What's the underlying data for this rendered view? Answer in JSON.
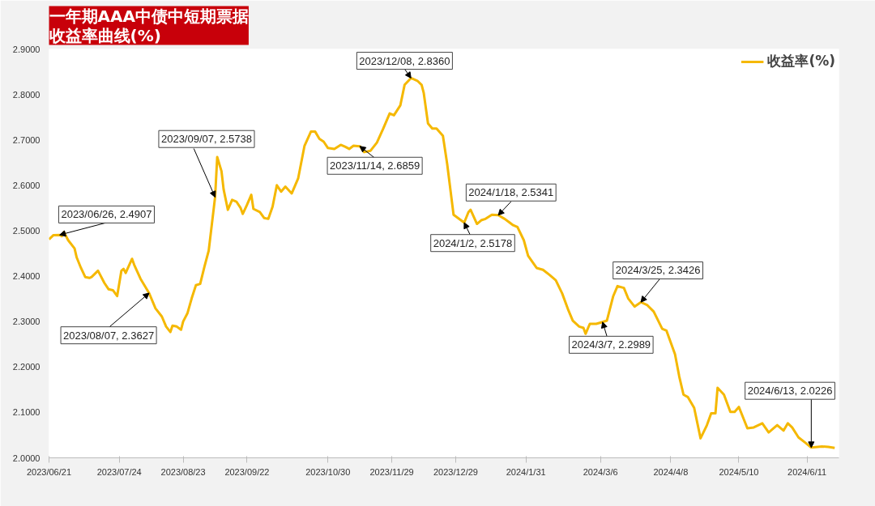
{
  "chart_data": {
    "type": "line",
    "title": "一年期AAA中债中短期票据收益率曲线(%)",
    "x": [
      "2023-06-21",
      "2023-06-23",
      "2023-06-26",
      "2023-06-27",
      "2023-06-28",
      "2023-06-30",
      "2023-07-03",
      "2023-07-04",
      "2023-07-06",
      "2023-07-08",
      "2023-07-10",
      "2023-07-11",
      "2023-07-14",
      "2023-07-15",
      "2023-07-17",
      "2023-07-19",
      "2023-07-21",
      "2023-07-23",
      "2023-07-25",
      "2023-07-26",
      "2023-07-27",
      "2023-07-30",
      "2023-07-31",
      "2023-08-03",
      "2023-08-07",
      "2023-08-10",
      "2023-08-13",
      "2023-08-15",
      "2023-08-17",
      "2023-08-18",
      "2023-08-20",
      "2023-08-22",
      "2023-08-23",
      "2023-08-25",
      "2023-08-27",
      "2023-08-29",
      "2023-08-31",
      "2023-09-02",
      "2023-09-04",
      "2023-09-07",
      "2023-09-08",
      "2023-09-10",
      "2023-09-11",
      "2023-09-13",
      "2023-09-15",
      "2023-09-17",
      "2023-09-19",
      "2023-09-20",
      "2023-09-22",
      "2023-09-24",
      "2023-09-25",
      "2023-09-28",
      "2023-09-30",
      "2023-10-02",
      "2023-10-04",
      "2023-10-06",
      "2023-10-08",
      "2023-10-10",
      "2023-10-13",
      "2023-10-16",
      "2023-10-19",
      "2023-10-22",
      "2023-10-24",
      "2023-10-26",
      "2023-10-28",
      "2023-10-30",
      "2023-11-02",
      "2023-11-05",
      "2023-11-07",
      "2023-11-09",
      "2023-11-11",
      "2023-11-14",
      "2023-11-16",
      "2023-11-19",
      "2023-11-22",
      "2023-11-25",
      "2023-11-28",
      "2023-11-30",
      "2023-12-03",
      "2023-12-05",
      "2023-12-08",
      "2023-12-11",
      "2023-12-13",
      "2023-12-14",
      "2023-12-16",
      "2023-12-18",
      "2023-12-20",
      "2023-12-23",
      "2023-12-25",
      "2023-12-28",
      "2024-01-02",
      "2024-01-04",
      "2024-01-05",
      "2024-01-08",
      "2024-01-10",
      "2024-01-12",
      "2024-01-15",
      "2024-01-18",
      "2024-01-21",
      "2024-01-23",
      "2024-01-25",
      "2024-01-27",
      "2024-01-30",
      "2024-02-01",
      "2024-02-05",
      "2024-02-08",
      "2024-02-11",
      "2024-02-14",
      "2024-02-17",
      "2024-02-20",
      "2024-02-22",
      "2024-02-25",
      "2024-02-27",
      "2024-02-28",
      "2024-03-01",
      "2024-03-04",
      "2024-03-07",
      "2024-03-09",
      "2024-03-12",
      "2024-03-14",
      "2024-03-17",
      "2024-03-19",
      "2024-03-22",
      "2024-03-25",
      "2024-03-28",
      "2024-03-31",
      "2024-04-04",
      "2024-04-06",
      "2024-04-10",
      "2024-04-12",
      "2024-04-14",
      "2024-04-16",
      "2024-04-19",
      "2024-04-22",
      "2024-04-25",
      "2024-04-27",
      "2024-04-29",
      "2024-04-30",
      "2024-05-03",
      "2024-05-06",
      "2024-05-08",
      "2024-05-10",
      "2024-05-14",
      "2024-05-17",
      "2024-05-21",
      "2024-05-24",
      "2024-05-28",
      "2024-05-31",
      "2024-06-02",
      "2024-06-04",
      "2024-06-07",
      "2024-06-10",
      "2024-06-13",
      "2024-06-18",
      "2024-06-21",
      "2024-06-24"
    ],
    "series": [
      {
        "name": "收益率(%)",
        "color": "#f5b800",
        "values": [
          2.481,
          2.49,
          2.4907,
          2.488,
          2.497,
          2.479,
          2.461,
          2.441,
          2.418,
          2.398,
          2.396,
          2.398,
          2.412,
          2.403,
          2.385,
          2.371,
          2.369,
          2.356,
          2.412,
          2.416,
          2.407,
          2.438,
          2.425,
          2.394,
          2.3627,
          2.329,
          2.311,
          2.289,
          2.277,
          2.291,
          2.289,
          2.282,
          2.3,
          2.318,
          2.351,
          2.38,
          2.383,
          2.421,
          2.456,
          2.5738,
          2.662,
          2.631,
          2.591,
          2.546,
          2.568,
          2.564,
          2.55,
          2.537,
          2.557,
          2.579,
          2.548,
          2.541,
          2.528,
          2.526,
          2.553,
          2.6,
          2.586,
          2.597,
          2.582,
          2.615,
          2.687,
          2.718,
          2.718,
          2.702,
          2.696,
          2.682,
          2.68,
          2.689,
          2.685,
          2.68,
          2.687,
          2.6859,
          2.673,
          2.676,
          2.694,
          2.725,
          2.758,
          2.754,
          2.776,
          2.821,
          2.836,
          2.83,
          2.821,
          2.803,
          2.736,
          2.725,
          2.725,
          2.709,
          2.647,
          2.535,
          2.5178,
          2.541,
          2.546,
          2.515,
          2.523,
          2.526,
          2.535,
          2.5341,
          2.526,
          2.519,
          2.512,
          2.508,
          2.479,
          2.445,
          2.418,
          2.414,
          2.403,
          2.391,
          2.362,
          2.324,
          2.302,
          2.289,
          2.286,
          2.273,
          2.295,
          2.295,
          2.2989,
          2.302,
          2.356,
          2.378,
          2.374,
          2.351,
          2.333,
          2.3426,
          2.336,
          2.322,
          2.284,
          2.28,
          2.228,
          2.179,
          2.139,
          2.134,
          2.11,
          2.043,
          2.072,
          2.098,
          2.098,
          2.154,
          2.139,
          2.101,
          2.101,
          2.112,
          2.065,
          2.067,
          2.076,
          2.056,
          2.072,
          2.06,
          2.076,
          2.067,
          2.045,
          2.034,
          2.0226,
          2.025,
          2.024,
          2.022
        ]
      }
    ],
    "xlim": [
      "2023-06-21",
      "2024-06-26"
    ],
    "xticks": [
      {
        "value": "2023-06-21",
        "label": "2023/06/21"
      },
      {
        "value": "2023-07-24",
        "label": "2023/07/24"
      },
      {
        "value": "2023-08-23",
        "label": "2023/08/23"
      },
      {
        "value": "2023-09-22",
        "label": "2023/09/22"
      },
      {
        "value": "2023-10-30",
        "label": "2023/10/30"
      },
      {
        "value": "2023-11-29",
        "label": "2023/11/29"
      },
      {
        "value": "2023-12-29",
        "label": "2023/12/29"
      },
      {
        "value": "2024-01-31",
        "label": "2024/1/31"
      },
      {
        "value": "2024-03-06",
        "label": "2024/3/6"
      },
      {
        "value": "2024-04-08",
        "label": "2024/4/8"
      },
      {
        "value": "2024-05-10",
        "label": "2024/5/10"
      },
      {
        "value": "2024-06-11",
        "label": "2024/6/11"
      }
    ],
    "ylim": [
      2.0,
      2.9
    ],
    "yticks": [
      {
        "value": 2.0,
        "label": "2.0000"
      },
      {
        "value": 2.1,
        "label": "2.1000"
      },
      {
        "value": 2.2,
        "label": "2.2000"
      },
      {
        "value": 2.3,
        "label": "2.3000"
      },
      {
        "value": 2.4,
        "label": "2.4000"
      },
      {
        "value": 2.5,
        "label": "2.5000"
      },
      {
        "value": 2.6,
        "label": "2.6000"
      },
      {
        "value": 2.7,
        "label": "2.7000"
      },
      {
        "value": 2.8,
        "label": "2.8000"
      },
      {
        "value": 2.9,
        "label": "2.9000"
      }
    ],
    "annotations": [
      {
        "text": "2023/06/26, 2.4907",
        "x": "2023-06-26",
        "y": 2.4907
      },
      {
        "text": "2023/08/07, 2.3627",
        "x": "2023-08-07",
        "y": 2.3627
      },
      {
        "text": "2023/09/07, 2.5738",
        "x": "2023-09-07",
        "y": 2.5738
      },
      {
        "text": "2023/11/14, 2.6859",
        "x": "2023-11-14",
        "y": 2.6859
      },
      {
        "text": "2023/12/08, 2.8360",
        "x": "2023-12-08",
        "y": 2.836
      },
      {
        "text": "2024/1/2, 2.5178",
        "x": "2024-01-02",
        "y": 2.5178
      },
      {
        "text": "2024/1/18, 2.5341",
        "x": "2024-01-18",
        "y": 2.5341
      },
      {
        "text": "2024/3/7, 2.2989",
        "x": "2024-03-07",
        "y": 2.2989
      },
      {
        "text": "2024/3/25, 2.3426",
        "x": "2024-03-25",
        "y": 2.3426
      },
      {
        "text": "2024/6/13, 2.0226",
        "x": "2024-06-13",
        "y": 2.0226
      }
    ],
    "grid": false,
    "legend": "top right",
    "marker": "none",
    "line_style": "solid"
  }
}
